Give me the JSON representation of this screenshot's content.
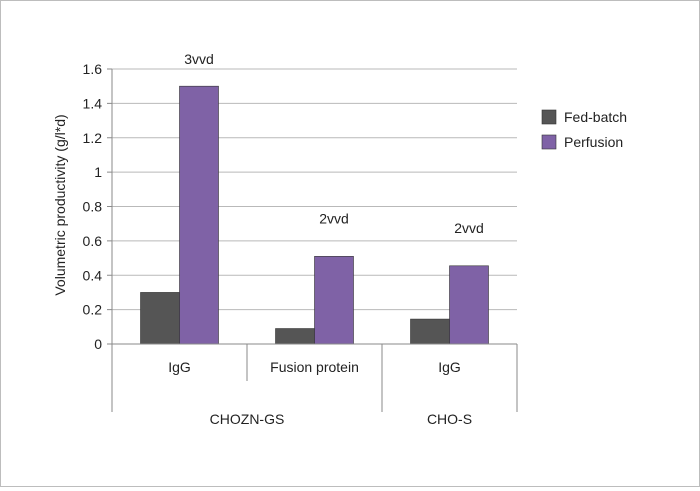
{
  "chart_data": {
    "type": "bar",
    "title": "",
    "ylabel": "Volumetric productivity (g/l*d)",
    "xlabel": "",
    "ylim": [
      0,
      1.6
    ],
    "yticks": [
      "0",
      "0.2",
      "0.4",
      "0.6",
      "0.8",
      "1",
      "1.2",
      "1.4",
      "1.6"
    ],
    "categories": [
      "IgG",
      "Fusion protein",
      "IgG"
    ],
    "groups": [
      {
        "label": "CHOZN-GS",
        "categories": [
          0,
          1
        ]
      },
      {
        "label": "CHO-S",
        "categories": [
          2
        ]
      }
    ],
    "series": [
      {
        "name": "Fed-batch",
        "color": "#555555",
        "values": [
          0.3,
          0.09,
          0.145
        ]
      },
      {
        "name": "Perfusion",
        "color": "#7f62a6",
        "values": [
          1.5,
          0.51,
          0.455
        ]
      }
    ],
    "annotations": [
      "3vvd",
      "2vvd",
      "2vvd"
    ],
    "legend_position": "right",
    "grid": true
  }
}
